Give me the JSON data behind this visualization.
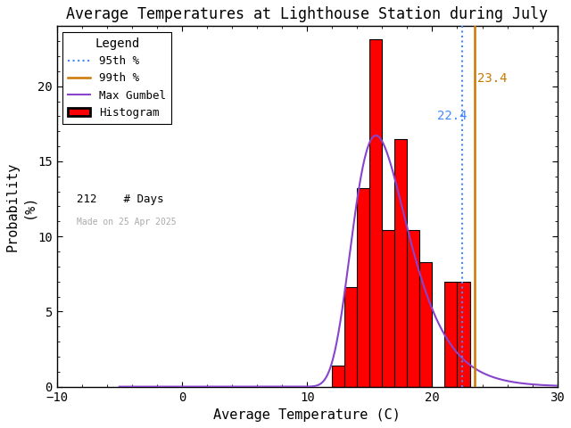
{
  "title": "Average Temperatures at Lighthouse Station during July",
  "xlabel": "Average Temperature (C)",
  "ylabel": "Probability\n(%)",
  "xlim": [
    -10,
    30
  ],
  "ylim": [
    0,
    24
  ],
  "yticks": [
    0,
    5,
    10,
    15,
    20
  ],
  "xticks": [
    -10,
    0,
    10,
    20,
    30
  ],
  "bin_left_edges": [
    12,
    13,
    14,
    15,
    16,
    17,
    18,
    19,
    20,
    21,
    22
  ],
  "bin_heights": [
    1.4,
    6.6,
    13.2,
    23.1,
    10.4,
    16.5,
    10.4,
    8.3,
    0,
    7.0,
    7.0
  ],
  "hist_color": "#ff0000",
  "hist_edgecolor": "#000000",
  "gumbel_color": "#8844cc",
  "gumbel_lw": 1.5,
  "p95_value": 22.4,
  "p99_value": 23.4,
  "p95_color": "#4488ff",
  "p95_linestyle": "dotted",
  "p99_color": "#cc7700",
  "p99_linestyle": "solid",
  "p95_label": "22.4",
  "p99_label": "23.4",
  "n_days": 212,
  "made_on": "Made on 25 Apr 2025",
  "legend_title": "Legend",
  "background_color": "#ffffff",
  "title_fontsize": 12,
  "axis_fontsize": 11,
  "tick_fontsize": 10,
  "gumbel_mu": 15.5,
  "gumbel_beta": 2.2
}
